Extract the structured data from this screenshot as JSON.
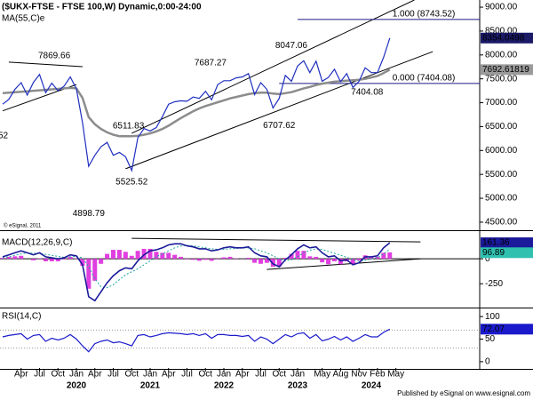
{
  "chart_data": [
    {
      "type": "line",
      "title": "($UKX-FTSE - FTSE 100,W) Dynamic,0:00-24:00",
      "copyright": "© eSignal, 2011",
      "cut_label": "52",
      "footer": "Published by eSignal on www.esignal.com",
      "x": [
        "2019-01",
        "2019-02",
        "2019-03",
        "2019-04",
        "2019-05",
        "2019-06",
        "2019-07",
        "2019-08",
        "2019-09",
        "2019-10",
        "2019-11",
        "2019-12",
        "2020-01",
        "2020-02",
        "2020-03",
        "2020-04",
        "2020-05",
        "2020-06",
        "2020-07",
        "2020-08",
        "2020-09",
        "2020-10",
        "2020-11",
        "2020-12",
        "2021-01",
        "2021-02",
        "2021-03",
        "2021-04",
        "2021-05",
        "2021-06",
        "2021-07",
        "2021-08",
        "2021-09",
        "2021-10",
        "2021-11",
        "2021-12",
        "2022-01",
        "2022-02",
        "2022-03",
        "2022-04",
        "2022-05",
        "2022-06",
        "2022-07",
        "2022-08",
        "2022-09",
        "2022-10",
        "2022-11",
        "2022-12",
        "2023-01",
        "2023-02",
        "2023-03",
        "2023-04",
        "2023-05",
        "2023-06",
        "2023-07",
        "2023-08",
        "2023-09",
        "2023-10",
        "2023-11",
        "2023-12",
        "2024-01",
        "2024-02",
        "2024-03",
        "2024-04"
      ],
      "xticks": [
        {
          "value": "2019-04",
          "label": "Apr"
        },
        {
          "value": "2019-07",
          "label": "Jul"
        },
        {
          "value": "2019-10",
          "label": "Oct"
        },
        {
          "value": "2020-01",
          "label": "Jan"
        },
        {
          "value": "2020-04",
          "label": "Apr"
        },
        {
          "value": "2020-07",
          "label": "Jul"
        },
        {
          "value": "2020-10",
          "label": "Oct"
        },
        {
          "value": "2021-01",
          "label": "Jan"
        },
        {
          "value": "2021-04",
          "label": "Apr"
        },
        {
          "value": "2021-07",
          "label": "Jul"
        },
        {
          "value": "2021-10",
          "label": "Oct"
        },
        {
          "value": "2022-01",
          "label": "Jan"
        },
        {
          "value": "2022-04",
          "label": "Apr"
        },
        {
          "value": "2022-07",
          "label": "Jul"
        },
        {
          "value": "2022-10",
          "label": "Oct"
        },
        {
          "value": "2023-01",
          "label": "Jan"
        },
        {
          "value": "2023-05",
          "label": "May"
        },
        {
          "value": "2023-08",
          "label": "Aug"
        },
        {
          "value": "2023-11",
          "label": "Nov"
        },
        {
          "value": "2024-02",
          "label": "Feb"
        },
        {
          "value": "2024-05",
          "label": "May"
        }
      ],
      "year_labels": [
        {
          "value": "2020-01",
          "label": "2020"
        },
        {
          "value": "2021-01",
          "label": "2021"
        },
        {
          "value": "2022-01",
          "label": "2022"
        },
        {
          "value": "2023-01",
          "label": "2023"
        },
        {
          "value": "2024-01",
          "label": "2024"
        }
      ],
      "ylim": [
        4350,
        9150
      ],
      "yticks": [
        {
          "value": 4500,
          "label": "4500.00"
        },
        {
          "value": 5000,
          "label": "5000.00"
        },
        {
          "value": 5500,
          "label": "5500.00"
        },
        {
          "value": 6000,
          "label": "6000.00"
        },
        {
          "value": 6500,
          "label": "6500.00"
        },
        {
          "value": 7000,
          "label": "7000.00"
        },
        {
          "value": 7500,
          "label": "7500.00"
        },
        {
          "value": 8000,
          "label": "8000.00"
        },
        {
          "value": 8500,
          "label": "8500.00"
        },
        {
          "value": 9000,
          "label": "9000.00"
        }
      ],
      "series": [
        {
          "color": "#1f2fbf",
          "values": [
            6970,
            7070,
            7280,
            7420,
            7160,
            7425,
            7590,
            7210,
            7410,
            7250,
            7350,
            7540,
            7290,
            6580,
            5670,
            5900,
            6080,
            6170,
            5900,
            5960,
            5870,
            5580,
            6270,
            6460,
            6410,
            6480,
            6710,
            6970,
            7020,
            7040,
            7030,
            7120,
            7090,
            7240,
            7060,
            7380,
            7460,
            7460,
            7520,
            7540,
            7610,
            7170,
            7420,
            7280,
            6890,
            7090,
            7570,
            7450,
            7770,
            7880,
            7630,
            7870,
            7450,
            7530,
            7700,
            7440,
            7610,
            7320,
            7450,
            7730,
            7630,
            7630,
            7950,
            8354.0498
          ]
        },
        {
          "name": "MA(55,C)e",
          "color": "#8c8c8c",
          "values": [
            7200,
            7210,
            7220,
            7230,
            7240,
            7250,
            7260,
            7270,
            7280,
            7290,
            7300,
            7310,
            7300,
            7100,
            6700,
            6550,
            6450,
            6380,
            6330,
            6300,
            6300,
            6300,
            6310,
            6330,
            6360,
            6400,
            6450,
            6520,
            6600,
            6680,
            6750,
            6820,
            6880,
            6930,
            6970,
            7010,
            7050,
            7090,
            7120,
            7150,
            7180,
            7200,
            7210,
            7210,
            7190,
            7180,
            7200,
            7220,
            7260,
            7300,
            7330,
            7370,
            7400,
            7420,
            7440,
            7450,
            7460,
            7470,
            7480,
            7500,
            7530,
            7560,
            7620,
            7692.61819
          ]
        }
      ],
      "trendlines": [
        [
          [
            "2019-02",
            7850
          ],
          [
            "2020-02",
            7755
          ]
        ],
        [
          [
            "2019-01",
            6830
          ],
          [
            "2020-01",
            7380
          ]
        ],
        [
          [
            "2020-10",
            6360
          ],
          [
            "2024-08",
            9150
          ]
        ],
        [
          [
            "2020-09",
            5617
          ],
          [
            "2024-11",
            8070
          ]
        ]
      ],
      "levels": [
        {
          "label": "1.000 (8743.52)",
          "value": 8743.52,
          "start": "2023-01"
        },
        {
          "label": "0.000 (7404.08)",
          "value": 7404.08,
          "start": "2022-10"
        }
      ],
      "annotations": [
        {
          "x": "2019-12",
          "value": 7869.66
        },
        {
          "x": "2020-06",
          "value": 6511.83
        },
        {
          "x": "2022-02",
          "value": 7687.27
        },
        {
          "x": "2023-02",
          "value": 8047.06
        },
        {
          "x": "2022-10",
          "value": 6707.62
        },
        {
          "x": "2020-10",
          "value": 5525.52
        },
        {
          "x": "2020-03",
          "value": 4898.79
        },
        {
          "x": "2023-10",
          "value": 7404.08
        }
      ]
    },
    {
      "type": "macd",
      "title": "MACD(12,26,9,C)",
      "ylim": [
        -480,
        260
      ],
      "yticks": [
        0,
        -250
      ],
      "series": [
        {
          "color": "#1a1a9a",
          "values": [
            20,
            40,
            60,
            80,
            60,
            40,
            60,
            20,
            10,
            0,
            10,
            40,
            30,
            -60,
            -380,
            -420,
            -330,
            -240,
            -170,
            -120,
            -90,
            -100,
            -20,
            40,
            80,
            90,
            110,
            140,
            150,
            150,
            130,
            120,
            100,
            100,
            80,
            90,
            110,
            120,
            110,
            110,
            120,
            60,
            30,
            20,
            -50,
            -80,
            -10,
            40,
            100,
            140,
            110,
            120,
            60,
            20,
            30,
            -20,
            -10,
            -60,
            -40,
            20,
            20,
            30,
            110,
            161.36
          ]
        },
        {
          "color": "#1fa89c",
          "values": [
            10,
            20,
            35,
            50,
            60,
            55,
            55,
            45,
            35,
            25,
            15,
            20,
            25,
            10,
            -80,
            -200,
            -280,
            -290,
            -260,
            -210,
            -160,
            -130,
            -100,
            -60,
            -20,
            20,
            50,
            80,
            110,
            130,
            135,
            130,
            120,
            110,
            100,
            95,
            95,
            100,
            105,
            108,
            110,
            100,
            80,
            60,
            30,
            0,
            -20,
            -10,
            20,
            60,
            85,
            100,
            95,
            75,
            55,
            35,
            15,
            -10,
            -25,
            -15,
            0,
            10,
            50,
            96.89
          ]
        }
      ],
      "histogram": {
        "color": "#e03fe0",
        "values": [
          10,
          20,
          25,
          30,
          0,
          -15,
          5,
          -25,
          -25,
          -25,
          -5,
          20,
          5,
          -70,
          -300,
          -220,
          -50,
          50,
          90,
          90,
          70,
          30,
          80,
          100,
          100,
          70,
          60,
          60,
          40,
          20,
          -5,
          -10,
          -20,
          -10,
          -20,
          -5,
          15,
          20,
          5,
          2,
          10,
          -40,
          -50,
          -40,
          -80,
          -80,
          10,
          50,
          80,
          80,
          25,
          20,
          -35,
          -55,
          -25,
          -55,
          -25,
          -50,
          -15,
          35,
          20,
          20,
          60,
          64.47
        ]
      },
      "trendlines": [
        [
          [
            "2020-10",
            205
          ],
          [
            "2024-09",
            170
          ]
        ],
        [
          [
            "2022-08",
            -107
          ],
          [
            "2024-09",
            0
          ]
        ]
      ]
    },
    {
      "type": "rsi",
      "title": "RSI(14,C)",
      "ylim": [
        -14,
        116
      ],
      "yticks": [
        100,
        50,
        0
      ],
      "guides": [
        70,
        30
      ],
      "series": [
        {
          "color": "#1a1acc",
          "values": [
            55,
            58,
            60,
            62,
            50,
            58,
            60,
            45,
            52,
            48,
            52,
            60,
            50,
            35,
            22,
            40,
            45,
            48,
            42,
            44,
            40,
            35,
            58,
            60,
            55,
            58,
            62,
            64,
            63,
            62,
            60,
            62,
            58,
            62,
            52,
            60,
            60,
            58,
            58,
            56,
            58,
            45,
            55,
            50,
            40,
            50,
            60,
            55,
            62,
            64,
            52,
            60,
            46,
            50,
            56,
            48,
            55,
            45,
            52,
            60,
            55,
            55,
            65,
            72.07
          ]
        }
      ]
    }
  ]
}
